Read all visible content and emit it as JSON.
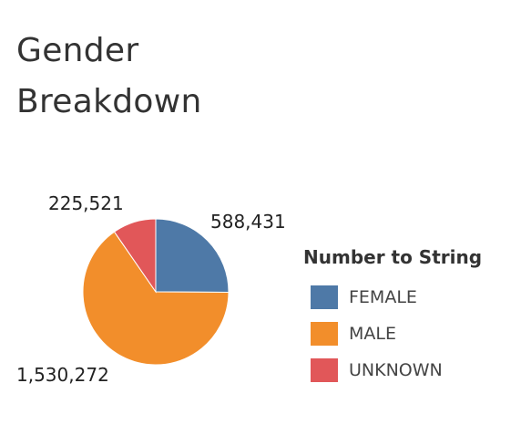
{
  "title_lines": [
    "Gender",
    "Breakdown"
  ],
  "chart_data": {
    "type": "pie",
    "categories": [
      "FEMALE",
      "MALE",
      "UNKNOWN"
    ],
    "values": [
      588431,
      1530272,
      225521
    ],
    "value_labels": [
      "588,431",
      "1,530,272",
      "225,521"
    ],
    "colors": [
      "#4e79a7",
      "#f28e2b",
      "#e15759"
    ],
    "legend_title": "Number to String",
    "legend_position": "right"
  }
}
